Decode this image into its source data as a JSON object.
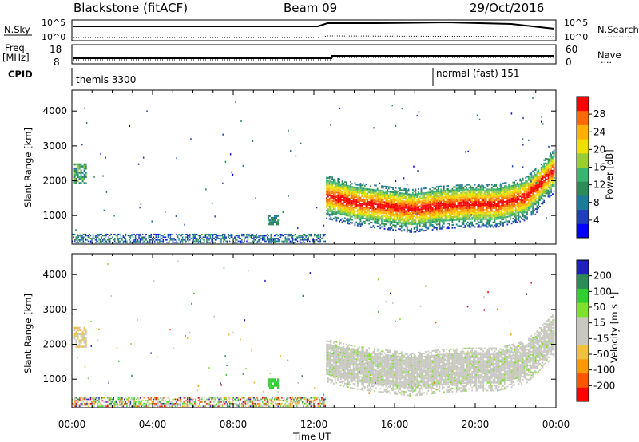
{
  "header": {
    "station": "Blackstone (fitACF)",
    "beam": "Beam 09",
    "date": "29/Oct/2016"
  },
  "summary": {
    "nsky_label": "N.Sky",
    "nsearch_label": "N.Search",
    "freq_label": "Freq.",
    "freq_unit": "[MHz]",
    "nave_label": "Nave",
    "cpid_label": "CPID",
    "log_top": "10^5",
    "log_bottom": "10^0",
    "freq_ticks": [
      "18",
      "8"
    ],
    "nave_ticks": [
      "60",
      "0"
    ],
    "cpid_segments": [
      {
        "label": "themis 3300",
        "start_h": 0,
        "end_h": 18
      },
      {
        "label": "normal (fast) 151",
        "start_h": 18,
        "end_h": 24
      }
    ]
  },
  "chart_data": [
    {
      "type": "heatmap",
      "panel": "power",
      "xlabel": "",
      "ylabel": "Slant Range [km]",
      "x": [
        "00:00",
        "04:00",
        "08:00",
        "12:00",
        "16:00",
        "20:00",
        "00:00"
      ],
      "xlim_hours": [
        0,
        24
      ],
      "ylim": [
        180,
        4600
      ],
      "yticks": [
        1000,
        2000,
        3000,
        4000
      ],
      "colorbar": {
        "label": "Power [dB]",
        "ticks": [
          4,
          8,
          12,
          16,
          20,
          24,
          28
        ],
        "range": [
          0,
          32
        ],
        "colors": [
          "#0000ff",
          "#1f3fb4",
          "#1f7a9a",
          "#2e8b57",
          "#3cb371",
          "#9acd32",
          "#f0e000",
          "#ffb000",
          "#ff6a00",
          "#ff0000"
        ]
      },
      "features": [
        {
          "desc": "near-range ground scatter",
          "start_h": 0,
          "end_h": 12.6,
          "range_km": [
            200,
            450
          ],
          "level_db": 6
        },
        {
          "desc": "early patch",
          "start_h": 0.1,
          "end_h": 0.7,
          "range_km": [
            1900,
            2450
          ],
          "level_db": 14
        },
        {
          "desc": "isolated patch",
          "start_h": 9.7,
          "end_h": 10.2,
          "range_km": [
            700,
            1000
          ],
          "level_db": 9
        },
        {
          "desc": "ionospheric band",
          "start_h": 12.6,
          "end_h": 23.9,
          "center_km": [
            1550,
            1350,
            1250,
            1150,
            1250,
            1300,
            1300,
            1500,
            2300
          ],
          "level_db": 28
        }
      ]
    },
    {
      "type": "heatmap",
      "panel": "velocity",
      "xlabel": "Time UT",
      "ylabel": "Slant Range [km]",
      "x": [
        "00:00",
        "04:00",
        "08:00",
        "12:00",
        "16:00",
        "20:00",
        "00:00"
      ],
      "xlim_hours": [
        0,
        24
      ],
      "ylim": [
        180,
        4600
      ],
      "yticks": [
        1000,
        2000,
        3000,
        4000
      ],
      "colorbar": {
        "label": "Velocity [m s⁻¹]",
        "ticks": [
          "200",
          "100",
          "50",
          "15",
          "-15",
          "-50",
          "-100",
          "-200"
        ],
        "colors": [
          "#2020c0",
          "#2e8b57",
          "#32cd32",
          "#7fe030",
          "#c8c8c0",
          "#c8c8c0",
          "#f0c040",
          "#ff9900",
          "#ff5500",
          "#ff0000"
        ]
      },
      "features": [
        {
          "desc": "near-range mixed velocities",
          "start_h": 0,
          "end_h": 12.6,
          "range_km": [
            200,
            500
          ],
          "velocity": -60
        },
        {
          "desc": "ionospheric band low velocity",
          "start_h": 12.6,
          "end_h": 23.9,
          "velocity": 0
        }
      ]
    }
  ]
}
